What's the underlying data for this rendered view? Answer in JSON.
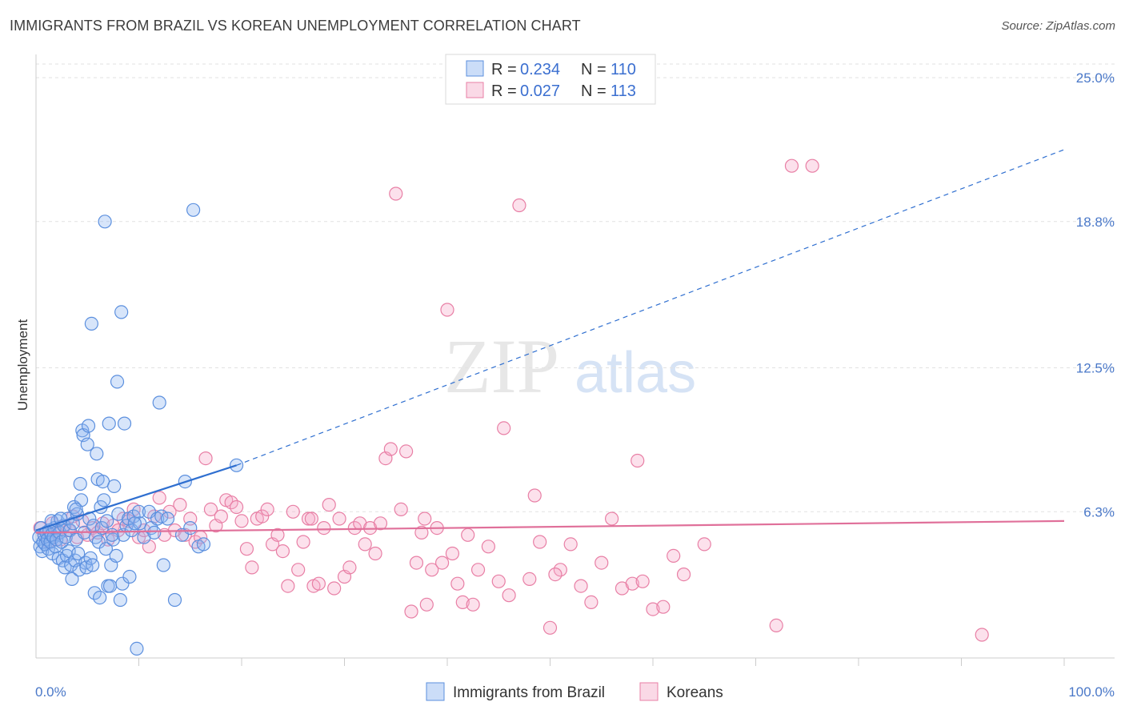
{
  "title": "IMMIGRANTS FROM BRAZIL VS KOREAN UNEMPLOYMENT CORRELATION CHART",
  "source": "Source: ZipAtlas.com",
  "watermark": {
    "zip": "ZIP",
    "atlas": "atlas"
  },
  "colors": {
    "blue": "#5b8fde",
    "blue_fill": "rgba(140,180,240,0.35)",
    "blue_line": "#2f6fd0",
    "pink": "#e87fa5",
    "pink_fill": "rgba(245,170,200,0.35)",
    "pink_line": "#e0709a",
    "grid": "#e2e2e2",
    "tick_text": "#4a78c8"
  },
  "legend": {
    "rows": [
      {
        "r_label": "R = ",
        "r_value": "0.234",
        "n_label": "N = ",
        "n_value": "110",
        "series": "blue"
      },
      {
        "r_label": "R = ",
        "r_value": "0.027",
        "n_label": "N = ",
        "n_value": "113",
        "series": "pink"
      }
    ]
  },
  "chart_data": {
    "type": "scatter",
    "title": "IMMIGRANTS FROM BRAZIL VS KOREAN UNEMPLOYMENT CORRELATION CHART",
    "xlabel": "",
    "ylabel": "Unemployment",
    "xlim": [
      0,
      100
    ],
    "ylim": [
      0,
      25
    ],
    "x_tick_labels": [
      "0.0%",
      "100.0%"
    ],
    "y_ticks": [
      6.3,
      12.5,
      18.8,
      25.0
    ],
    "y_tick_labels": [
      "6.3%",
      "12.5%",
      "18.8%",
      "25.0%"
    ],
    "grid": true,
    "legend_position": "bottom",
    "series": [
      {
        "name": "Immigrants from Brazil",
        "color_key": "blue",
        "trend": {
          "x0": 0,
          "y0": 5.5,
          "x1": 19.5,
          "y1": 8.3,
          "dashed_to_x": 100,
          "dashed_to_y": 21.9
        },
        "points": [
          [
            0.3,
            5.2
          ],
          [
            0.4,
            4.8
          ],
          [
            0.5,
            5.6
          ],
          [
            0.6,
            4.6
          ],
          [
            0.7,
            5.0
          ],
          [
            0.8,
            5.3
          ],
          [
            0.9,
            4.9
          ],
          [
            1.0,
            5.4
          ],
          [
            1.1,
            5.1
          ],
          [
            1.2,
            4.7
          ],
          [
            1.3,
            5.5
          ],
          [
            1.4,
            5.0
          ],
          [
            1.5,
            5.3
          ],
          [
            1.6,
            4.5
          ],
          [
            1.7,
            5.2
          ],
          [
            1.8,
            5.6
          ],
          [
            1.9,
            4.8
          ],
          [
            2.0,
            5.1
          ],
          [
            2.1,
            5.9
          ],
          [
            2.2,
            4.3
          ],
          [
            2.3,
            5.4
          ],
          [
            2.5,
            5.0
          ],
          [
            2.6,
            4.2
          ],
          [
            2.7,
            5.7
          ],
          [
            2.8,
            3.9
          ],
          [
            2.9,
            5.2
          ],
          [
            3.0,
            4.4
          ],
          [
            3.1,
            6.0
          ],
          [
            3.2,
            4.6
          ],
          [
            3.3,
            5.5
          ],
          [
            3.4,
            4.0
          ],
          [
            3.5,
            3.4
          ],
          [
            3.6,
            5.8
          ],
          [
            3.7,
            6.5
          ],
          [
            3.8,
            4.2
          ],
          [
            3.9,
            5.1
          ],
          [
            4.0,
            6.2
          ],
          [
            4.1,
            4.5
          ],
          [
            4.2,
            3.8
          ],
          [
            4.3,
            7.5
          ],
          [
            4.4,
            6.8
          ],
          [
            4.5,
            9.8
          ],
          [
            4.6,
            9.6
          ],
          [
            4.7,
            5.4
          ],
          [
            4.8,
            4.1
          ],
          [
            4.9,
            3.9
          ],
          [
            5.0,
            9.2
          ],
          [
            5.1,
            10.0
          ],
          [
            5.2,
            6.0
          ],
          [
            5.3,
            4.3
          ],
          [
            5.4,
            14.4
          ],
          [
            5.5,
            4.0
          ],
          [
            5.6,
            5.7
          ],
          [
            5.7,
            2.8
          ],
          [
            5.8,
            5.2
          ],
          [
            5.9,
            8.8
          ],
          [
            6.0,
            7.7
          ],
          [
            6.1,
            5.0
          ],
          [
            6.2,
            2.6
          ],
          [
            6.3,
            6.5
          ],
          [
            6.4,
            5.6
          ],
          [
            6.5,
            7.6
          ],
          [
            6.6,
            6.8
          ],
          [
            6.7,
            18.8
          ],
          [
            6.8,
            4.7
          ],
          [
            6.9,
            5.9
          ],
          [
            7.0,
            3.1
          ],
          [
            7.1,
            10.1
          ],
          [
            7.2,
            3.1
          ],
          [
            7.3,
            4.0
          ],
          [
            7.5,
            5.1
          ],
          [
            7.6,
            7.4
          ],
          [
            7.8,
            4.4
          ],
          [
            7.9,
            11.9
          ],
          [
            8.0,
            6.2
          ],
          [
            8.2,
            2.5
          ],
          [
            8.3,
            14.9
          ],
          [
            8.4,
            3.2
          ],
          [
            8.5,
            5.3
          ],
          [
            8.6,
            10.1
          ],
          [
            8.8,
            5.7
          ],
          [
            9.0,
            6.0
          ],
          [
            9.1,
            3.5
          ],
          [
            9.3,
            5.5
          ],
          [
            9.5,
            6.1
          ],
          [
            9.8,
            0.4
          ],
          [
            10.0,
            6.3
          ],
          [
            10.1,
            5.8
          ],
          [
            10.5,
            5.2
          ],
          [
            11.0,
            6.3
          ],
          [
            11.2,
            5.6
          ],
          [
            11.5,
            5.4
          ],
          [
            11.8,
            6.0
          ],
          [
            12.0,
            11.0
          ],
          [
            12.2,
            6.1
          ],
          [
            12.4,
            4.0
          ],
          [
            12.8,
            6.0
          ],
          [
            13.5,
            2.5
          ],
          [
            14.2,
            5.3
          ],
          [
            14.5,
            7.6
          ],
          [
            15.0,
            5.6
          ],
          [
            15.3,
            19.3
          ],
          [
            15.8,
            4.8
          ],
          [
            16.3,
            4.9
          ],
          [
            19.5,
            8.3
          ],
          [
            1.5,
            5.9
          ],
          [
            2.4,
            6.0
          ],
          [
            3.9,
            6.4
          ],
          [
            7.4,
            5.3
          ],
          [
            9.6,
            5.8
          ]
        ]
      },
      {
        "name": "Koreans",
        "color_key": "pink",
        "trend": {
          "x0": 0,
          "y0": 5.4,
          "x1": 100,
          "y1": 5.9
        },
        "points": [
          [
            0.4,
            5.6
          ],
          [
            0.8,
            5.3
          ],
          [
            1.2,
            5.0
          ],
          [
            1.6,
            5.8
          ],
          [
            2.0,
            5.4
          ],
          [
            2.4,
            5.1
          ],
          [
            2.8,
            5.7
          ],
          [
            3.2,
            5.5
          ],
          [
            3.6,
            6.1
          ],
          [
            4.0,
            5.2
          ],
          [
            4.5,
            5.9
          ],
          [
            5.0,
            5.3
          ],
          [
            5.5,
            5.6
          ],
          [
            6.0,
            5.4
          ],
          [
            6.5,
            5.8
          ],
          [
            7.0,
            5.1
          ],
          [
            7.5,
            5.7
          ],
          [
            8.0,
            5.5
          ],
          [
            8.5,
            6.0
          ],
          [
            9.0,
            5.9
          ],
          [
            9.5,
            6.4
          ],
          [
            10.0,
            5.2
          ],
          [
            10.5,
            5.5
          ],
          [
            11.0,
            4.8
          ],
          [
            11.5,
            6.1
          ],
          [
            12.0,
            6.9
          ],
          [
            12.5,
            5.3
          ],
          [
            13.0,
            6.3
          ],
          [
            13.5,
            5.5
          ],
          [
            14.0,
            6.6
          ],
          [
            14.5,
            5.3
          ],
          [
            15.0,
            6.0
          ],
          [
            15.5,
            5.0
          ],
          [
            16.0,
            5.2
          ],
          [
            16.5,
            8.6
          ],
          [
            17.0,
            6.4
          ],
          [
            17.5,
            5.7
          ],
          [
            18.0,
            6.1
          ],
          [
            18.5,
            6.8
          ],
          [
            19.0,
            6.7
          ],
          [
            19.5,
            6.5
          ],
          [
            20.0,
            5.9
          ],
          [
            20.5,
            4.7
          ],
          [
            21.0,
            3.9
          ],
          [
            21.5,
            6.0
          ],
          [
            22.0,
            6.1
          ],
          [
            22.5,
            6.4
          ],
          [
            23.0,
            4.9
          ],
          [
            23.5,
            5.3
          ],
          [
            24.0,
            4.6
          ],
          [
            24.5,
            3.1
          ],
          [
            25.0,
            6.3
          ],
          [
            25.5,
            3.8
          ],
          [
            26.0,
            5.0
          ],
          [
            26.5,
            6.0
          ],
          [
            27.0,
            3.1
          ],
          [
            27.5,
            3.2
          ],
          [
            28.0,
            5.6
          ],
          [
            28.5,
            6.6
          ],
          [
            29.0,
            3.0
          ],
          [
            29.5,
            6.0
          ],
          [
            30.0,
            3.5
          ],
          [
            30.5,
            3.9
          ],
          [
            31.0,
            5.6
          ],
          [
            31.5,
            5.8
          ],
          [
            32.0,
            4.9
          ],
          [
            32.5,
            5.6
          ],
          [
            33.0,
            4.5
          ],
          [
            33.5,
            5.8
          ],
          [
            34.0,
            8.6
          ],
          [
            34.5,
            9.0
          ],
          [
            35.0,
            20.0
          ],
          [
            35.5,
            6.4
          ],
          [
            36.0,
            8.9
          ],
          [
            36.5,
            2.0
          ],
          [
            37.0,
            4.1
          ],
          [
            37.5,
            5.4
          ],
          [
            38.0,
            2.3
          ],
          [
            38.5,
            3.8
          ],
          [
            39.0,
            5.6
          ],
          [
            39.5,
            4.1
          ],
          [
            40.0,
            15.0
          ],
          [
            40.5,
            4.5
          ],
          [
            41.0,
            3.2
          ],
          [
            41.5,
            2.4
          ],
          [
            42.0,
            5.3
          ],
          [
            42.5,
            2.3
          ],
          [
            43.0,
            3.8
          ],
          [
            44.0,
            4.8
          ],
          [
            45.0,
            3.3
          ],
          [
            46.0,
            2.7
          ],
          [
            47.0,
            19.5
          ],
          [
            48.0,
            3.4
          ],
          [
            48.5,
            7.0
          ],
          [
            49.0,
            5.0
          ],
          [
            50.0,
            1.3
          ],
          [
            51.0,
            3.8
          ],
          [
            52.0,
            4.9
          ],
          [
            53.0,
            3.1
          ],
          [
            54.0,
            2.4
          ],
          [
            55.0,
            4.1
          ],
          [
            56.0,
            6.0
          ],
          [
            57.0,
            3.0
          ],
          [
            58.0,
            3.2
          ],
          [
            58.5,
            8.5
          ],
          [
            59.0,
            3.3
          ],
          [
            60.0,
            2.1
          ],
          [
            61.0,
            2.2
          ],
          [
            62.0,
            4.4
          ],
          [
            63.0,
            3.6
          ],
          [
            65.0,
            4.9
          ],
          [
            72.0,
            1.4
          ],
          [
            73.5,
            21.2
          ],
          [
            75.5,
            21.2
          ],
          [
            92.0,
            1.0
          ],
          [
            45.5,
            9.9
          ],
          [
            26.8,
            6.0
          ],
          [
            50.5,
            3.6
          ],
          [
            37.8,
            6.0
          ]
        ]
      }
    ]
  },
  "bottom_legend": {
    "items": [
      {
        "label": "Immigrants from Brazil",
        "series": "blue"
      },
      {
        "label": "Koreans",
        "series": "pink"
      }
    ]
  }
}
